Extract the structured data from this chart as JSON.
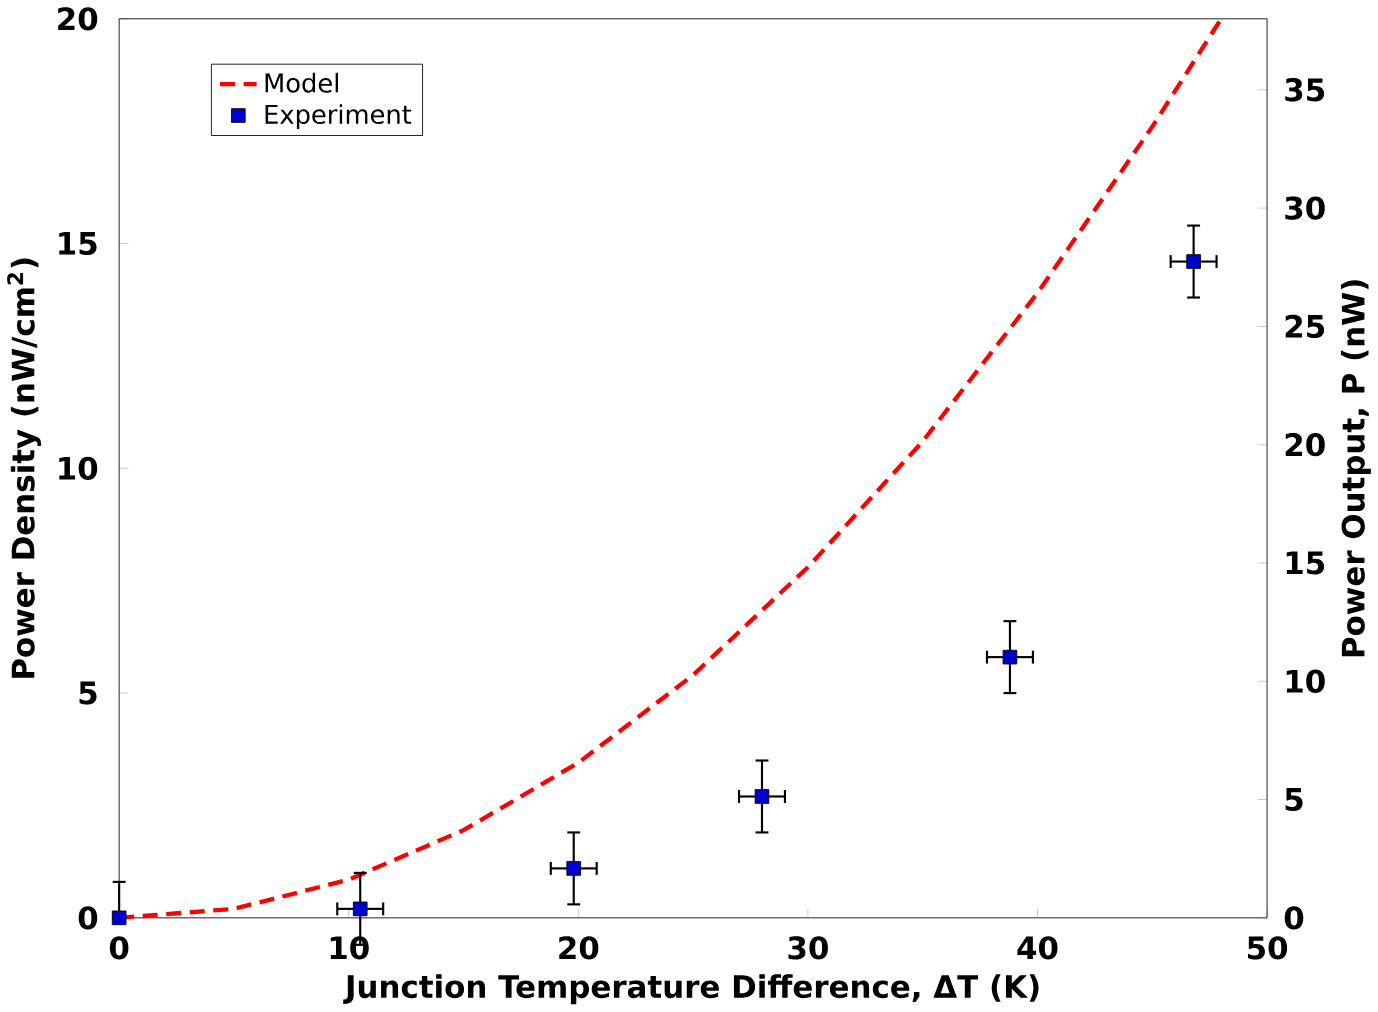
{
  "chart_data": {
    "type": "scatter",
    "xlabel": "Junction Temperature Difference, ΔT (K)",
    "ylabel": "Power Density (nW/cm$^{2}$)",
    "y2label": "Power Output, P (nW)",
    "xlim": [
      0,
      50
    ],
    "xticks": [
      0,
      10,
      20,
      30,
      40,
      50
    ],
    "ylim": [
      0,
      20
    ],
    "yticks": [
      0,
      5,
      10,
      15,
      20
    ],
    "y2lim": [
      0,
      38
    ],
    "y2ticks": [
      0,
      5,
      10,
      15,
      20,
      25,
      30,
      35
    ],
    "legend": "top left",
    "grid": false,
    "series": [
      {
        "name": "Model",
        "type": "line",
        "color": "#ff0000",
        "line_style": "dashed",
        "marker": "none",
        "x": [
          0,
          5,
          10,
          15,
          20,
          25,
          30,
          35,
          40,
          45,
          48
        ],
        "values": [
          0,
          0.2,
          0.85,
          1.95,
          3.45,
          5.4,
          7.8,
          10.6,
          13.9,
          17.6,
          20
        ]
      },
      {
        "name": "Experiment",
        "color": "#0000cc",
        "marker": "square",
        "x": [
          0,
          10.5,
          19.8,
          28,
          38.8,
          46.8
        ],
        "values": [
          0,
          0.2,
          1.1,
          2.7,
          5.8,
          14.6
        ],
        "errors": [
          [
            0,
            0.8
          ],
          0.8,
          0.8,
          0.8,
          0.8,
          0.8
        ],
        "xerrors": [
          null,
          1,
          1,
          1,
          1,
          1
        ]
      }
    ]
  }
}
